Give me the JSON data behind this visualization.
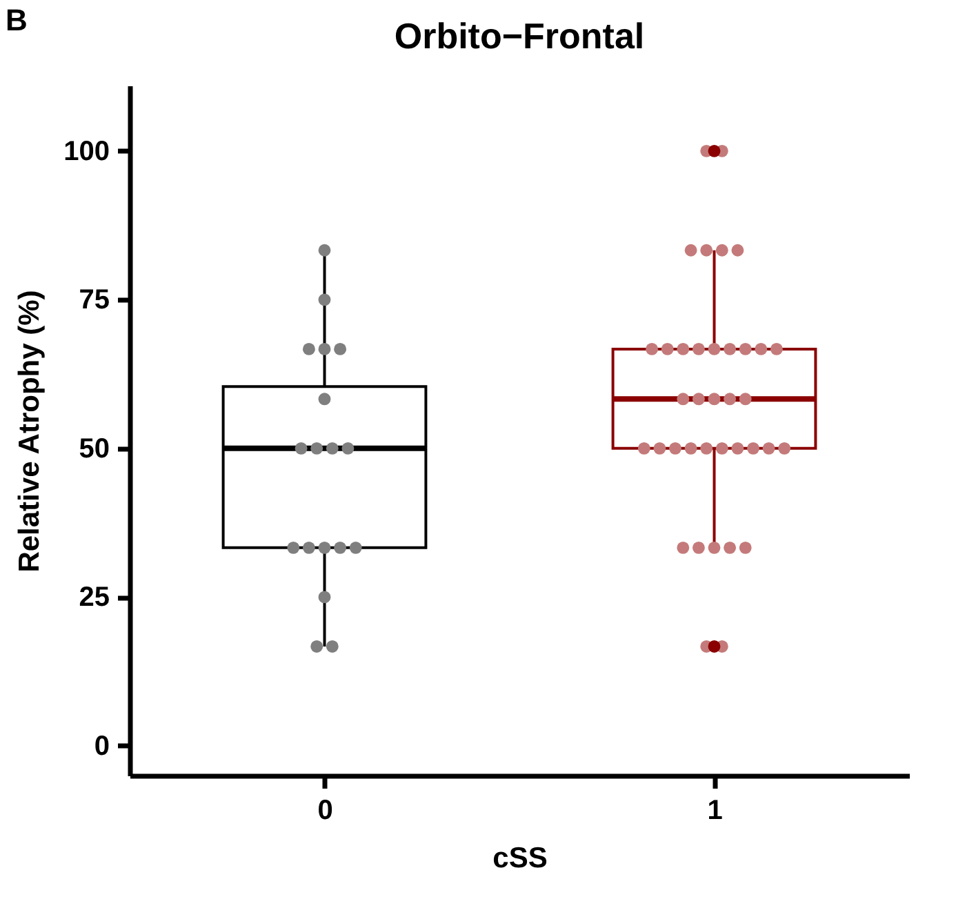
{
  "chart_data": {
    "type": "box",
    "title": "Orbito−Frontal",
    "xlabel": "cSS",
    "ylabel": "Relative Atrophy (%)",
    "annotations": [
      "B"
    ],
    "categories": [
      "0",
      "1"
    ],
    "colors": [
      "#000000",
      "#8b0000"
    ],
    "boxes": [
      {
        "low": 16.7,
        "q1": 33.3,
        "median": 50,
        "q3": 60.4,
        "high": 83.3
      },
      {
        "low": 33.3,
        "q1": 50,
        "median": 58.3,
        "q3": 66.7,
        "high": 83.3,
        "outliers": [
          16.7,
          100
        ]
      }
    ],
    "series": [
      {
        "type": "scatter",
        "color": "#7f7f7f",
        "x": [
          "0",
          "0",
          "0",
          "0",
          "0",
          "0",
          "0",
          "0",
          "0",
          "0",
          "0",
          "0",
          "0",
          "0",
          "0",
          "0",
          "0",
          "0"
        ],
        "values": [
          83.3,
          75,
          66.7,
          66.7,
          66.7,
          58.3,
          50,
          50,
          50,
          50,
          33.3,
          33.3,
          33.3,
          33.3,
          33.3,
          25,
          16.7,
          16.7
        ]
      },
      {
        "type": "scatter",
        "color": "#c47a7a",
        "x": [
          "1",
          "1",
          "1",
          "1",
          "1",
          "1",
          "1",
          "1",
          "1",
          "1",
          "1",
          "1",
          "1",
          "1",
          "1",
          "1",
          "1",
          "1",
          "1",
          "1",
          "1",
          "1",
          "1",
          "1",
          "1",
          "1",
          "1",
          "1",
          "1",
          "1",
          "1",
          "1",
          "1",
          "1",
          "1",
          "1",
          "1"
        ],
        "values": [
          100,
          100,
          83.3,
          83.3,
          83.3,
          83.3,
          66.7,
          66.7,
          66.7,
          66.7,
          66.7,
          66.7,
          66.7,
          66.7,
          66.7,
          58.3,
          58.3,
          58.3,
          58.3,
          58.3,
          50,
          50,
          50,
          50,
          50,
          50,
          50,
          50,
          50,
          50,
          33.3,
          33.3,
          33.3,
          33.3,
          33.3,
          16.7,
          16.7
        ]
      }
    ],
    "ylim": [
      -5,
      111
    ],
    "yticks": [
      0,
      25,
      50,
      75,
      100
    ],
    "grid": false,
    "marker": "circle"
  }
}
